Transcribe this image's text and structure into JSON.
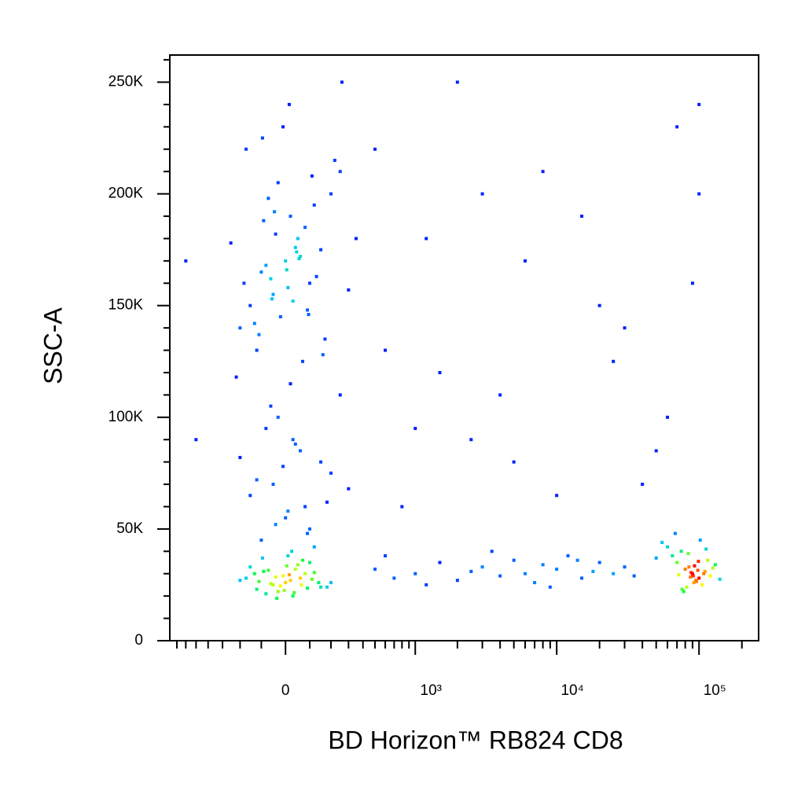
{
  "chart_data": {
    "type": "scatter",
    "x_label": "BD Horizon™ RB824 CD8",
    "y_label": "SSC-A",
    "x_scale": "biexponential",
    "xlim": [
      -790,
      262144
    ],
    "ylim": [
      0,
      262144
    ],
    "xticks": [
      0,
      {
        "value": 1000,
        "label": "10³"
      },
      {
        "value": 10000,
        "label": "10⁴"
      },
      {
        "value": 100000,
        "label": "10⁵"
      }
    ],
    "xminorticks": [
      -700,
      -600,
      -500,
      -400,
      -300,
      -200,
      -100,
      100,
      200,
      300,
      400,
      500,
      600,
      700,
      800,
      900,
      2000,
      3000,
      4000,
      5000,
      6000,
      7000,
      8000,
      9000,
      20000,
      30000,
      40000,
      50000,
      60000,
      70000,
      80000,
      90000,
      200000
    ],
    "yticks": [
      0,
      {
        "value": 50000,
        "label": "50K"
      },
      {
        "value": 100000,
        "label": "100K"
      },
      {
        "value": 150000,
        "label": "150K"
      },
      {
        "value": 200000,
        "label": "200K"
      },
      {
        "value": 250000,
        "label": "250K"
      }
    ],
    "yminorticks": [
      10000,
      20000,
      30000,
      40000,
      60000,
      70000,
      80000,
      90000,
      110000,
      120000,
      130000,
      140000,
      160000,
      170000,
      180000,
      190000,
      210000,
      220000,
      230000,
      240000,
      260000
    ],
    "colormap": [
      "#0000ff",
      "#00c8ff",
      "#00ff40",
      "#ffff00",
      "#ff0000"
    ],
    "x": [
      -50,
      20,
      -120,
      80,
      0,
      -30,
      60,
      -90,
      150,
      -150,
      30,
      -10,
      100,
      -60,
      10,
      -200,
      200,
      40,
      -80,
      120,
      -20,
      70,
      -40,
      90,
      -110,
      50,
      -5,
      15,
      -70,
      110,
      180,
      -170,
      25,
      -35,
      65,
      -95,
      5,
      140,
      -130,
      35,
      -100,
      0,
      50,
      -50,
      100,
      150,
      -150,
      20,
      -20,
      80,
      -80,
      200,
      -200,
      10,
      60,
      -60,
      120,
      -120,
      250,
      -250,
      30,
      -30,
      90,
      -90,
      170,
      -170,
      5,
      40,
      -40,
      300,
      -10,
      70,
      -70,
      130,
      -130,
      220,
      -220,
      15,
      55,
      -55,
      110,
      -110,
      350,
      -180,
      45,
      -45,
      95,
      -95,
      160,
      260,
      -100,
      0,
      80,
      -50,
      150,
      30,
      -150,
      200,
      -30,
      100,
      60,
      -80,
      250,
      10,
      -120,
      120,
      40,
      -60,
      180,
      -10,
      90,
      -200,
      300,
      20,
      -40,
      90000,
      80000,
      100000,
      70000,
      110000,
      95000,
      85000,
      120000,
      75000,
      105000,
      65000,
      88000,
      92000,
      130000,
      60000,
      98000,
      82000,
      115000,
      72000,
      102000,
      87000,
      50000,
      140000,
      93000,
      78000,
      108000,
      68000,
      96000,
      84000,
      125000,
      55000,
      91000,
      99000,
      76000,
      112000,
      500,
      700,
      1000,
      1500,
      2000,
      2500,
      3000,
      4000,
      5000,
      6000,
      7000,
      8000,
      10000,
      12000,
      15000,
      18000,
      20000,
      25000,
      30000,
      35000,
      600,
      1200,
      3500,
      9000,
      14000,
      800,
      1500,
      3000,
      5000,
      20000,
      60000,
      100000,
      1200,
      2500,
      8000,
      40000,
      90000,
      600,
      4000,
      15000,
      70000,
      2000,
      30000,
      500,
      10000,
      50000,
      100000,
      1000,
      6000,
      25000,
      -600,
      -500
    ],
    "values": [
      25000,
      27000,
      23000,
      30000,
      26000,
      22000,
      28000,
      31000,
      24000,
      33000,
      20000,
      29000,
      35000,
      25500,
      38000,
      27000,
      26000,
      32000,
      21000,
      30500,
      24500,
      36000,
      28500,
      23500,
      26500,
      34000,
      22500,
      29500,
      31500,
      27500,
      24000,
      28000,
      40000,
      19000,
      25000,
      37000,
      33500,
      26000,
      30000,
      21500,
      165000,
      170000,
      180000,
      155000,
      160000,
      175000,
      150000,
      190000,
      145000,
      185000,
      168000,
      200000,
      140000,
      158000,
      172000,
      162000,
      195000,
      130000,
      210000,
      178000,
      152000,
      205000,
      148000,
      188000,
      135000,
      220000,
      166000,
      176000,
      182000,
      157000,
      230000,
      125000,
      198000,
      163000,
      142000,
      215000,
      118000,
      240000,
      171000,
      153000,
      208000,
      137000,
      180000,
      160000,
      174000,
      192000,
      146000,
      225000,
      128000,
      250000,
      45000,
      55000,
      60000,
      70000,
      80000,
      90000,
      65000,
      75000,
      100000,
      50000,
      85000,
      95000,
      110000,
      58000,
      72000,
      42000,
      88000,
      105000,
      62000,
      78000,
      48000,
      82000,
      68000,
      115000,
      52000,
      30000,
      32000,
      28000,
      35000,
      31000,
      27000,
      33000,
      29000,
      40000,
      25000,
      38000,
      30500,
      26000,
      34000,
      42000,
      31500,
      24000,
      36000,
      29500,
      45000,
      28500,
      37000,
      27500,
      33500,
      22000,
      30000,
      48000,
      26500,
      39000,
      32500,
      44000,
      29000,
      35500,
      23000,
      41000,
      32000,
      28000,
      30000,
      35000,
      27000,
      31000,
      33000,
      29000,
      36000,
      30000,
      26000,
      34000,
      32000,
      38000,
      28000,
      31000,
      35000,
      30000,
      33000,
      29000,
      38000,
      25000,
      40000,
      24000,
      36000,
      60000,
      120000,
      200000,
      80000,
      150000,
      100000,
      240000,
      180000,
      90000,
      210000,
      70000,
      160000,
      130000,
      110000,
      190000,
      230000,
      250000,
      140000,
      220000,
      65000,
      85000,
      200000,
      95000,
      170000,
      125000,
      170000,
      90000
    ]
  }
}
